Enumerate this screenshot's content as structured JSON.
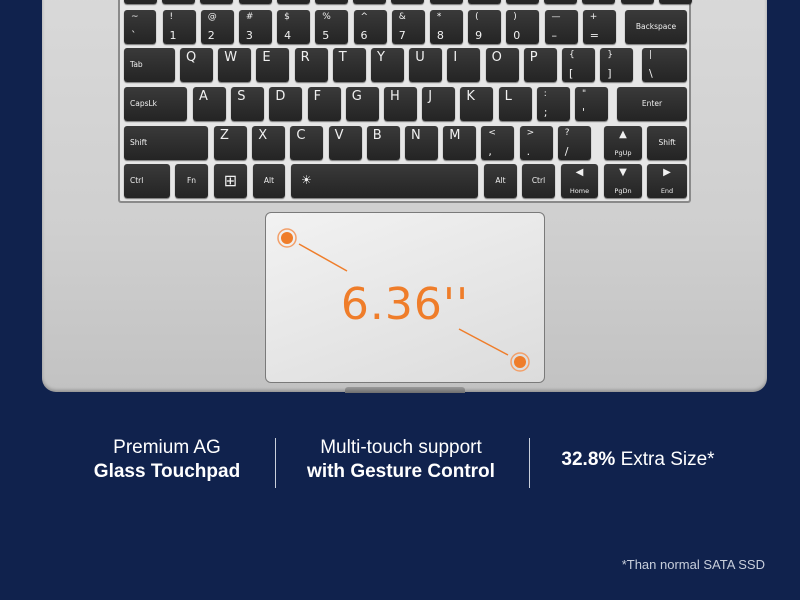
{
  "keyboard": {
    "rows": [
      [
        {
          "t": "~",
          "b": "`"
        },
        {
          "t": "!",
          "b": "1"
        },
        {
          "t": "@",
          "b": "2"
        },
        {
          "t": "#",
          "b": "3"
        },
        {
          "t": "$",
          "b": "4"
        },
        {
          "t": "%",
          "b": "5"
        },
        {
          "t": "^",
          "b": "6"
        },
        {
          "t": "&",
          "b": "7"
        },
        {
          "t": "*",
          "b": "8"
        },
        {
          "t": "(",
          "b": "9"
        },
        {
          "t": ")",
          "b": "0"
        },
        {
          "t": "—",
          "b": "–"
        },
        {
          "t": "+",
          "b": "="
        },
        {
          "c": "Backspace"
        }
      ],
      [
        {
          "w": "Tab"
        },
        {
          "m": "Q"
        },
        {
          "m": "W"
        },
        {
          "m": "E"
        },
        {
          "m": "R"
        },
        {
          "m": "T"
        },
        {
          "m": "Y"
        },
        {
          "m": "U"
        },
        {
          "m": "I"
        },
        {
          "m": "O"
        },
        {
          "m": "P"
        },
        {
          "t": "{",
          "b": "["
        },
        {
          "t": "}",
          "b": "]"
        },
        {
          "t": "|",
          "b": "\\"
        }
      ],
      [
        {
          "w": "CapsLk"
        },
        {
          "m": "A"
        },
        {
          "m": "S"
        },
        {
          "m": "D"
        },
        {
          "m": "F"
        },
        {
          "m": "G"
        },
        {
          "m": "H"
        },
        {
          "m": "J"
        },
        {
          "m": "K"
        },
        {
          "m": "L"
        },
        {
          "t": ":",
          "b": ";"
        },
        {
          "t": "\"",
          "b": "'"
        },
        {
          "c": "Enter"
        }
      ],
      [
        {
          "w": "Shift"
        },
        {
          "m": "Z"
        },
        {
          "m": "X"
        },
        {
          "m": "C"
        },
        {
          "m": "V"
        },
        {
          "m": "B"
        },
        {
          "m": "N"
        },
        {
          "m": "M"
        },
        {
          "t": "<",
          "b": ","
        },
        {
          "t": ">",
          "b": "."
        },
        {
          "t": "?",
          "b": "/"
        },
        {
          "ai": "▲",
          "as": "PgUp"
        },
        {
          "c": "Shift"
        }
      ],
      [
        {
          "w": "Ctrl"
        },
        {
          "c": "Fn"
        },
        {
          "ai": "⊞",
          "icon": "windows-icon"
        },
        {
          "c": "Alt"
        },
        {
          "w": "☀",
          "icon": "backlight-icon"
        },
        {
          "c": "Alt"
        },
        {
          "c": "Ctrl"
        },
        {
          "ai": "◀",
          "as": "Home"
        },
        {
          "ai": "▼",
          "as": "PgDn"
        },
        {
          "ai": "▶",
          "as": "End"
        }
      ]
    ]
  },
  "touchpad": {
    "size_label": "6.36''",
    "accent": "#ef7d2a"
  },
  "features": [
    {
      "line1": "Premium AG",
      "line2": "Glass Touchpad"
    },
    {
      "line1": "Multi-touch support",
      "line2": "with Gesture Control"
    },
    {
      "bold": "32.8%",
      "rest": " Extra Size*"
    }
  ],
  "footnote": "*Than normal SATA SSD",
  "colors": {
    "background": "#10224d",
    "laptop": "#d2d2d2",
    "keys": "#2b2b2b"
  }
}
